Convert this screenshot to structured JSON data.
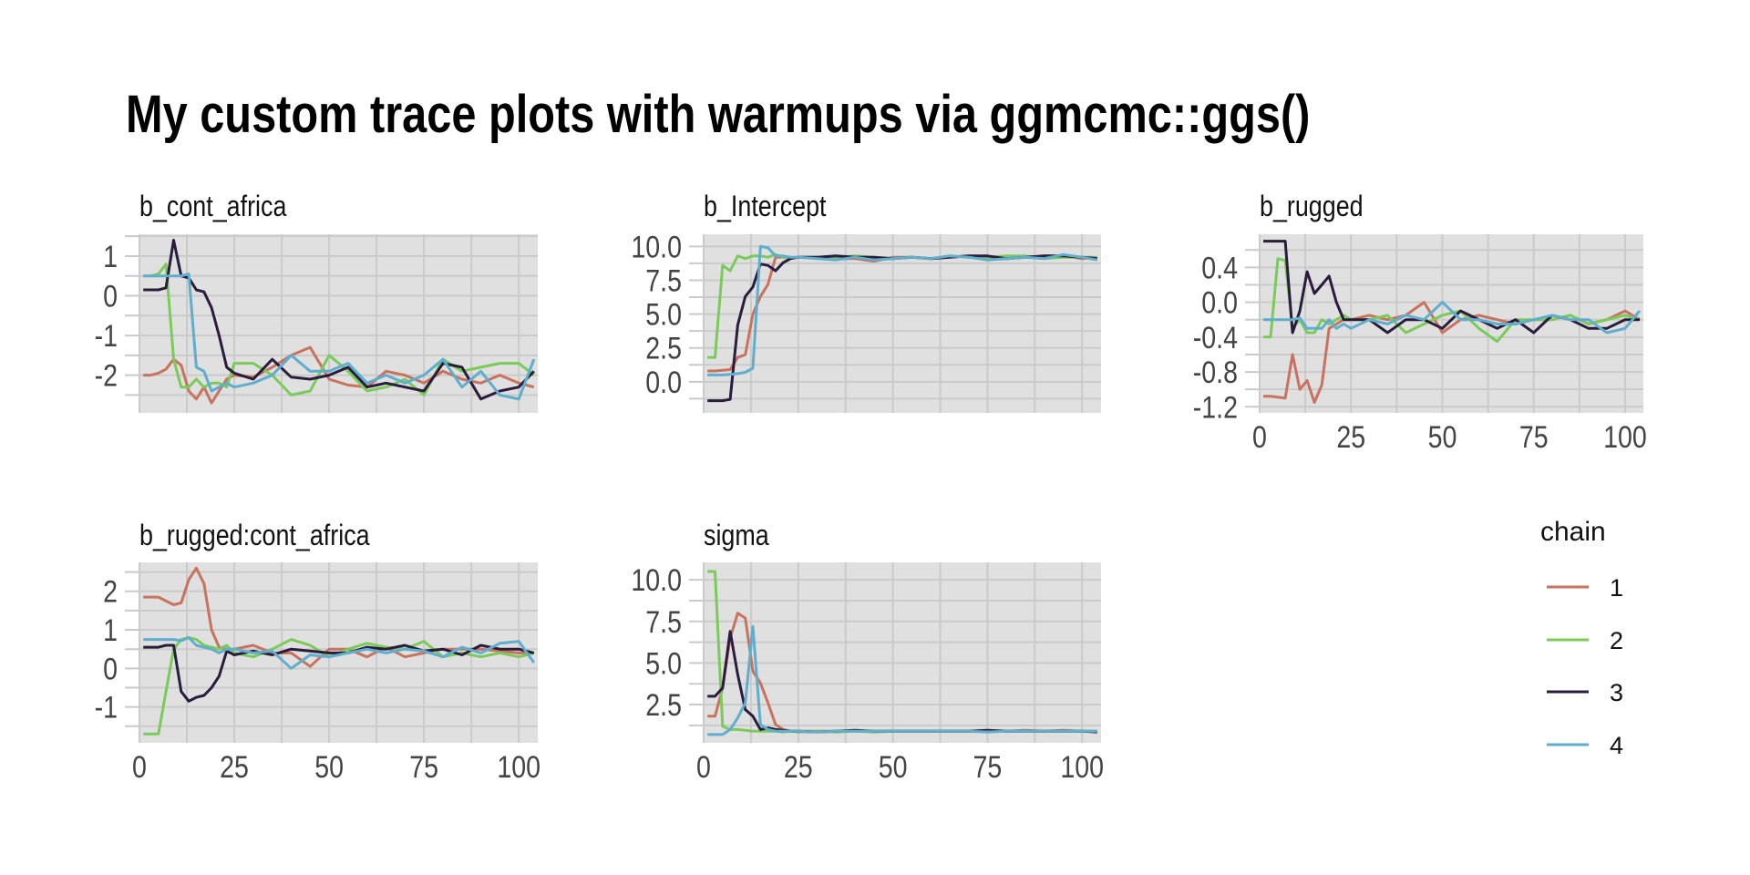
{
  "chart_data": [
    {
      "type": "line",
      "title": "b_cont_africa",
      "xlim": [
        0,
        105
      ],
      "ylim": [
        -2.95,
        1.55
      ],
      "x_ticks": [
        0,
        25,
        50,
        75,
        100
      ],
      "x_tick_labels": [],
      "y_ticks": [
        1,
        0,
        -1,
        -2
      ],
      "y_tick_labels": [
        "1",
        "0",
        "-1",
        "-2"
      ],
      "series": [
        {
          "name": "1",
          "values": [
            -2,
            -2,
            -1.95,
            -1.85,
            -1.6,
            -1.75,
            -2.4,
            -2.6,
            -2.3,
            -2.7,
            -2.4,
            -2.1,
            -2.0,
            -2.05,
            -1.8,
            -1.5,
            -1.3,
            -2.1,
            -2.25,
            -2.3,
            -1.9,
            -2.0,
            -2.2,
            -1.9,
            -2.1,
            -2.2,
            -2.0,
            -2.2,
            -2.3
          ]
        },
        {
          "name": "2",
          "values": [
            0.5,
            0.5,
            0.55,
            0.8,
            -1.6,
            -2.3,
            -2.3,
            -2.1,
            -2.3,
            -2.2,
            -2.2,
            -2.3,
            -1.7,
            -1.7,
            -2.0,
            -2.5,
            -2.4,
            -1.5,
            -1.9,
            -2.4,
            -2.3,
            -2.1,
            -2.5,
            -1.6,
            -1.9,
            -1.8,
            -1.7,
            -1.7,
            -2.0
          ]
        },
        {
          "name": "3",
          "values": [
            0.15,
            0.15,
            0.15,
            0.2,
            1.4,
            0.5,
            0.45,
            0.15,
            0.1,
            -0.3,
            -1.0,
            -1.8,
            -1.95,
            -2.1,
            -1.6,
            -2.05,
            -2.1,
            -2.0,
            -1.8,
            -2.3,
            -2.2,
            -2.3,
            -2.4,
            -1.7,
            -1.8,
            -2.6,
            -2.4,
            -2.3,
            -1.9
          ]
        },
        {
          "name": "4",
          "values": [
            0.5,
            0.5,
            0.5,
            0.5,
            0.5,
            0.5,
            0.55,
            -1.8,
            -1.9,
            -2.4,
            -2.3,
            -2.2,
            -2.3,
            -2.2,
            -2.0,
            -1.5,
            -1.9,
            -1.9,
            -1.7,
            -2.2,
            -2.0,
            -2.2,
            -2.0,
            -1.6,
            -2.3,
            -1.9,
            -2.5,
            -2.6,
            -1.6
          ]
        }
      ]
    },
    {
      "type": "line",
      "title": "b_Intercept",
      "xlim": [
        0,
        105
      ],
      "ylim": [
        -2.3,
        10.9
      ],
      "x_ticks": [
        0,
        25,
        50,
        75,
        100
      ],
      "x_tick_labels": [],
      "y_ticks": [
        10,
        7.5,
        5,
        2.5,
        0
      ],
      "y_tick_labels": [
        "10.0",
        "7.5",
        "5.0",
        "2.5",
        "0.0"
      ],
      "series": [
        {
          "name": "1",
          "values": [
            0.8,
            0.8,
            0.85,
            0.9,
            1.8,
            2.0,
            5.0,
            6.3,
            7.2,
            9.2,
            9.2,
            9.1,
            9.2,
            9.2,
            9.1,
            9.1,
            8.9,
            9.2,
            9.2,
            9.1,
            9.2,
            9.3,
            9.2,
            9.1,
            9.2,
            9.3,
            9.3,
            9.1,
            9.2
          ]
        },
        {
          "name": "2",
          "values": [
            1.8,
            1.8,
            8.6,
            8.2,
            9.3,
            9.1,
            9.3,
            9.3,
            9.2,
            9.4,
            9.2,
            9.1,
            9.2,
            9.2,
            9.2,
            9.3,
            9.2,
            9.1,
            9.2,
            9.1,
            9.3,
            9.2,
            9.2,
            9.3,
            9.3,
            9.1,
            9.2,
            9.2,
            9.2
          ]
        },
        {
          "name": "3",
          "values": [
            -1.4,
            -1.4,
            -1.4,
            -1.3,
            4.2,
            6.3,
            7.0,
            8.7,
            8.6,
            8.2,
            8.8,
            9.1,
            9.2,
            9.2,
            9.3,
            9.2,
            9.2,
            9.1,
            9.2,
            9.1,
            9.2,
            9.3,
            9.3,
            9.1,
            9.2,
            9.3,
            9.3,
            9.2,
            9.1
          ]
        },
        {
          "name": "4",
          "values": [
            0.5,
            0.5,
            0.5,
            0.55,
            0.6,
            0.7,
            1.0,
            10.0,
            9.9,
            9.3,
            9.3,
            9.2,
            9.2,
            9.1,
            9.0,
            9.2,
            9.0,
            9.1,
            9.2,
            9.1,
            9.3,
            9.2,
            9.0,
            9.1,
            9.2,
            9.1,
            9.4,
            9.2,
            9.0
          ]
        }
      ]
    },
    {
      "type": "line",
      "title": "b_rugged",
      "xlim": [
        0,
        105
      ],
      "ylim": [
        -1.27,
        0.78
      ],
      "x_ticks": [
        0,
        25,
        50,
        75,
        100
      ],
      "x_tick_labels": [
        "0",
        "25",
        "50",
        "75",
        "100"
      ],
      "y_ticks": [
        0.4,
        0,
        -0.4,
        -0.8,
        -1.2
      ],
      "y_tick_labels": [
        "0.4",
        "0.0",
        "-0.4",
        "-0.8",
        "-1.2"
      ],
      "series": [
        {
          "name": "1",
          "values": [
            -1.08,
            -1.08,
            -1.09,
            -1.1,
            -0.6,
            -1.0,
            -0.9,
            -1.15,
            -0.95,
            -0.3,
            -0.25,
            -0.2,
            -0.2,
            -0.15,
            -0.2,
            -0.15,
            0.0,
            -0.35,
            -0.2,
            -0.15,
            -0.2,
            -0.25,
            -0.2,
            -0.2,
            -0.15,
            -0.25,
            -0.2,
            -0.1,
            -0.2
          ]
        },
        {
          "name": "2",
          "values": [
            -0.4,
            -0.4,
            0.5,
            0.48,
            -0.3,
            -0.2,
            -0.35,
            -0.35,
            -0.2,
            -0.25,
            -0.2,
            -0.15,
            -0.2,
            -0.2,
            -0.15,
            -0.35,
            -0.25,
            -0.15,
            -0.1,
            -0.3,
            -0.45,
            -0.2,
            -0.2,
            -0.2,
            -0.15,
            -0.25,
            -0.2,
            -0.15,
            -0.2
          ]
        },
        {
          "name": "3",
          "values": [
            0.7,
            0.7,
            0.7,
            0.7,
            -0.35,
            -0.1,
            0.35,
            0.1,
            0.2,
            0.3,
            0.0,
            -0.2,
            -0.2,
            -0.2,
            -0.35,
            -0.2,
            -0.2,
            -0.3,
            -0.1,
            -0.2,
            -0.3,
            -0.2,
            -0.35,
            -0.15,
            -0.2,
            -0.3,
            -0.3,
            -0.2,
            -0.2
          ]
        },
        {
          "name": "4",
          "values": [
            -0.2,
            -0.2,
            -0.2,
            -0.2,
            -0.2,
            -0.18,
            -0.3,
            -0.3,
            -0.3,
            -0.2,
            -0.3,
            -0.25,
            -0.3,
            -0.2,
            -0.25,
            -0.15,
            -0.2,
            0.0,
            -0.2,
            -0.2,
            -0.25,
            -0.25,
            -0.2,
            -0.15,
            -0.2,
            -0.2,
            -0.35,
            -0.3,
            -0.1
          ]
        }
      ]
    },
    {
      "type": "line",
      "title": "b_rugged:cont_africa",
      "xlim": [
        0,
        105
      ],
      "ylim": [
        -1.93,
        2.75
      ],
      "x_ticks": [
        0,
        25,
        50,
        75,
        100
      ],
      "x_tick_labels": [
        "0",
        "25",
        "50",
        "75",
        "100"
      ],
      "y_ticks": [
        2,
        1,
        0,
        -1
      ],
      "y_tick_labels": [
        "2",
        "1",
        "0",
        "-1"
      ],
      "series": [
        {
          "name": "1",
          "values": [
            1.85,
            1.85,
            1.85,
            1.75,
            1.65,
            1.7,
            2.3,
            2.6,
            2.2,
            1.0,
            0.55,
            0.5,
            0.5,
            0.6,
            0.4,
            0.4,
            0.05,
            0.5,
            0.5,
            0.3,
            0.55,
            0.3,
            0.4,
            0.5,
            0.5,
            0.5,
            0.45,
            0.4,
            0.4
          ]
        },
        {
          "name": "2",
          "values": [
            -1.7,
            -1.7,
            -1.7,
            -0.6,
            0.5,
            0.75,
            0.8,
            0.75,
            0.6,
            0.55,
            0.5,
            0.6,
            0.4,
            0.3,
            0.5,
            0.75,
            0.6,
            0.3,
            0.5,
            0.65,
            0.55,
            0.5,
            0.7,
            0.3,
            0.4,
            0.3,
            0.4,
            0.3,
            0.4
          ]
        },
        {
          "name": "3",
          "values": [
            0.55,
            0.55,
            0.55,
            0.6,
            0.6,
            -0.6,
            -0.85,
            -0.75,
            -0.7,
            -0.5,
            -0.2,
            0.45,
            0.35,
            0.45,
            0.35,
            0.5,
            0.45,
            0.4,
            0.4,
            0.55,
            0.5,
            0.6,
            0.45,
            0.5,
            0.35,
            0.6,
            0.5,
            0.5,
            0.4
          ]
        },
        {
          "name": "4",
          "values": [
            0.75,
            0.75,
            0.75,
            0.75,
            0.75,
            0.72,
            0.8,
            0.6,
            0.55,
            0.5,
            0.4,
            0.5,
            0.5,
            0.4,
            0.45,
            0.0,
            0.35,
            0.3,
            0.4,
            0.5,
            0.4,
            0.5,
            0.45,
            0.3,
            0.55,
            0.4,
            0.65,
            0.7,
            0.15
          ]
        }
      ]
    },
    {
      "type": "line",
      "title": "sigma",
      "xlim": [
        0,
        105
      ],
      "ylim": [
        0.2,
        11.05
      ],
      "x_ticks": [
        0,
        25,
        50,
        75,
        100
      ],
      "x_tick_labels": [
        "0",
        "25",
        "50",
        "75",
        "100"
      ],
      "y_ticks": [
        10,
        7.5,
        5,
        2.5
      ],
      "y_tick_labels": [
        "10.0",
        "7.5",
        "5.0",
        "2.5"
      ],
      "series": [
        {
          "name": "1",
          "values": [
            1.8,
            1.8,
            3.5,
            6.5,
            8.0,
            7.7,
            4.5,
            3.8,
            2.6,
            1.3,
            1.0,
            0.9,
            0.9,
            0.9,
            0.9,
            0.9,
            0.9,
            0.9,
            0.9,
            0.9,
            0.9,
            0.9,
            0.9,
            0.9,
            0.95,
            0.9,
            0.95,
            0.9,
            0.9
          ]
        },
        {
          "name": "2",
          "values": [
            10.5,
            10.5,
            1.2,
            1.0,
            1.0,
            0.95,
            0.9,
            0.9,
            0.9,
            0.9,
            0.85,
            0.9,
            0.85,
            0.9,
            0.85,
            0.9,
            0.85,
            0.9,
            0.9,
            0.9,
            0.9,
            0.9,
            0.95,
            0.9,
            0.9,
            0.9,
            0.9,
            0.9,
            0.9
          ]
        },
        {
          "name": "3",
          "values": [
            3.0,
            3.0,
            3.5,
            6.9,
            4.3,
            2.2,
            1.8,
            1.0,
            1.1,
            1.0,
            0.95,
            0.9,
            0.9,
            0.85,
            0.9,
            0.95,
            0.9,
            0.9,
            0.9,
            0.9,
            0.9,
            0.9,
            0.95,
            0.9,
            0.9,
            0.9,
            0.9,
            0.9,
            0.85
          ]
        },
        {
          "name": "4",
          "values": [
            0.7,
            0.7,
            0.7,
            1.0,
            1.7,
            2.6,
            7.2,
            1.3,
            1.0,
            0.9,
            0.9,
            0.9,
            0.9,
            0.85,
            0.9,
            0.9,
            0.9,
            0.9,
            0.9,
            0.9,
            0.9,
            0.9,
            0.85,
            0.9,
            0.9,
            0.9,
            0.9,
            0.9,
            0.9
          ]
        }
      ]
    }
  ],
  "iterations": [
    1,
    3,
    5,
    7,
    9,
    11,
    13,
    15,
    17,
    19,
    21,
    23,
    25,
    30,
    35,
    40,
    45,
    50,
    55,
    60,
    65,
    70,
    75,
    80,
    85,
    90,
    95,
    100,
    104
  ],
  "title": "My custom trace plots with warmups via ggmcmc::ggs()",
  "legend": {
    "title": "chain",
    "entries": [
      {
        "label": "1",
        "color": "#C9725E"
      },
      {
        "label": "2",
        "color": "#7ACB5A"
      },
      {
        "label": "3",
        "color": "#2A1C3C"
      },
      {
        "label": "4",
        "color": "#5FAECD"
      }
    ]
  },
  "colors": {
    "panel_bg": "#E0E0E0",
    "grid": "#CACACA"
  }
}
